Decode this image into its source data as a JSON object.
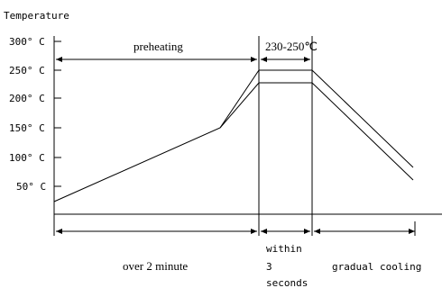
{
  "y_axis_title": "Temperature",
  "y_ticks": [
    {
      "label": "300° C",
      "temp": 300
    },
    {
      "label": "250° C",
      "temp": 250
    },
    {
      "label": "200° C",
      "temp": 200
    },
    {
      "label": "150° C",
      "temp": 150
    },
    {
      "label": "100° C",
      "temp": 100
    },
    {
      "label": "50° C",
      "temp": 50
    }
  ],
  "zones": {
    "preheating": "preheating",
    "peak_range": "230-250℃",
    "time_preheat": "over 2 minute",
    "time_peak_line1": "within",
    "time_peak_line2": "3",
    "time_peak_line3": "seconds",
    "time_cooling": "gradual cooling"
  },
  "profile": {
    "upper_peak_temp": 250,
    "lower_peak_temp": 230,
    "preheat_end_temp": 150
  }
}
